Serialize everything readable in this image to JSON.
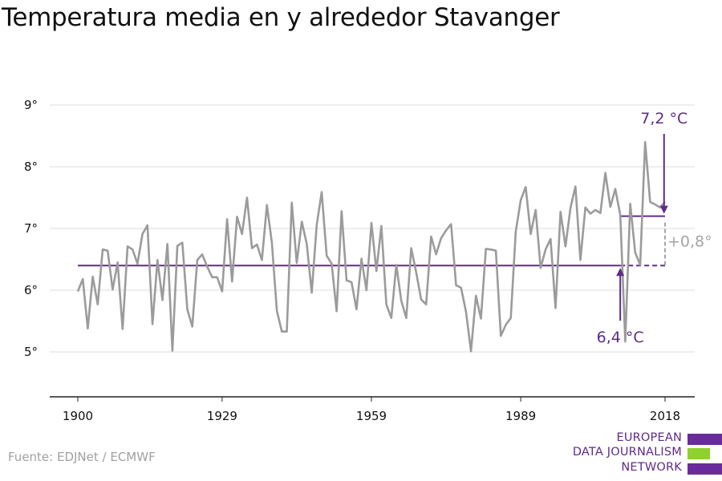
{
  "title": "Temperatura media en y alrededor Stavanger",
  "source": "Fuente: EDJNet / ECMWF",
  "logo": {
    "line1": "EUROPEAN",
    "line2": "DATA JOURNALISM",
    "line3": "NETWORK",
    "colors": [
      "#6a2c9a",
      "#8fd12f",
      "#6a2c9a"
    ]
  },
  "colors": {
    "series": "#9b9b9b",
    "accent": "#5e2b8a",
    "grid": "#dddddd",
    "axis": "#222222",
    "annotation_grey": "#a5a5a5"
  },
  "chart_data": {
    "type": "line",
    "title": "Temperatura media en y alrededor Stavanger",
    "xlabel": "",
    "ylabel": "",
    "xlim": [
      1900,
      2018
    ],
    "ylim": [
      5,
      9
    ],
    "grid": true,
    "x_ticks": [
      {
        "value": 1900,
        "label": "1900"
      },
      {
        "value": 1929,
        "label": "1929"
      },
      {
        "value": 1959,
        "label": "1959"
      },
      {
        "value": 1989,
        "label": "1989"
      },
      {
        "value": 2018,
        "label": "2018"
      }
    ],
    "y_ticks": [
      {
        "value": 5,
        "label": "5°"
      },
      {
        "value": 6,
        "label": "6°"
      },
      {
        "value": 7,
        "label": "7°"
      },
      {
        "value": 8,
        "label": "8°"
      },
      {
        "value": 9,
        "label": "9°"
      }
    ],
    "series": [
      {
        "x": [
          1900,
          1901,
          1902,
          1903,
          1904,
          1905,
          1906,
          1907,
          1908,
          1909,
          1910,
          1911,
          1912,
          1913,
          1914,
          1915,
          1916,
          1917,
          1918,
          1919,
          1920,
          1921,
          1922,
          1923,
          1924,
          1925,
          1926,
          1927,
          1928,
          1929,
          1930,
          1931,
          1932,
          1933,
          1934,
          1935,
          1936,
          1937,
          1938,
          1939,
          1940,
          1941,
          1942,
          1943,
          1944,
          1945,
          1946,
          1947,
          1948,
          1949,
          1950,
          1951,
          1952,
          1953,
          1954,
          1955,
          1956,
          1957,
          1958,
          1959,
          1960,
          1961,
          1962,
          1963,
          1964,
          1965,
          1966,
          1967,
          1968,
          1969,
          1970,
          1971,
          1972,
          1973,
          1974,
          1975,
          1976,
          1977,
          1978,
          1979,
          1980,
          1981,
          1982,
          1983,
          1984,
          1985,
          1986,
          1987,
          1988,
          1989,
          1990,
          1991,
          1992,
          1993,
          1994,
          1995,
          1996,
          1997,
          1998,
          1999,
          2000,
          2001,
          2002,
          2003,
          2004,
          2005,
          2006,
          2007,
          2008,
          2009,
          2010,
          2011,
          2012,
          2013,
          2014,
          2015,
          2016,
          2017,
          2018
        ],
        "values": [
          5.98,
          6.18,
          5.38,
          6.22,
          5.77,
          6.66,
          6.64,
          6.01,
          6.45,
          5.37,
          6.71,
          6.66,
          6.43,
          6.91,
          7.05,
          5.45,
          6.49,
          5.84,
          6.75,
          5.02,
          6.72,
          6.77,
          5.69,
          5.41,
          6.49,
          6.58,
          6.38,
          6.21,
          6.21,
          5.98,
          7.15,
          6.14,
          7.19,
          6.91,
          7.5,
          6.68,
          6.74,
          6.49,
          7.38,
          6.77,
          5.67,
          5.33,
          5.33,
          7.42,
          6.44,
          7.11,
          6.75,
          5.96,
          7.06,
          7.59,
          6.56,
          6.43,
          5.66,
          7.28,
          6.16,
          6.13,
          5.69,
          6.51,
          6.0,
          7.09,
          6.31,
          7.04,
          5.77,
          5.55,
          6.41,
          5.83,
          5.55,
          6.68,
          6.29,
          5.85,
          5.77,
          6.87,
          6.58,
          6.84,
          6.97,
          7.07,
          6.08,
          6.04,
          5.65,
          5.01,
          5.91,
          5.54,
          6.67,
          6.66,
          6.64,
          5.26,
          5.44,
          5.55,
          6.95,
          7.46,
          7.67,
          6.91,
          7.3,
          6.36,
          6.66,
          6.83,
          5.71,
          7.27,
          6.71,
          7.33,
          7.68,
          6.49,
          7.34,
          7.24,
          7.3,
          7.25,
          7.9,
          7.35,
          7.64,
          7.22,
          5.17,
          7.4,
          6.61,
          6.41,
          8.4,
          7.43,
          7.39,
          7.34,
          7.43
        ]
      }
    ],
    "reference_lines": [
      {
        "label": "6,4 °C",
        "value": 6.4,
        "x_start": 1900,
        "x_end": 2009
      },
      {
        "label": "7,2 °C",
        "value": 7.2,
        "x_start": 2009,
        "x_end": 2018
      }
    ],
    "annotations": [
      {
        "text": "7,2 °C"
      },
      {
        "text": "6,4 °C"
      },
      {
        "text": "+0,8°"
      }
    ]
  }
}
